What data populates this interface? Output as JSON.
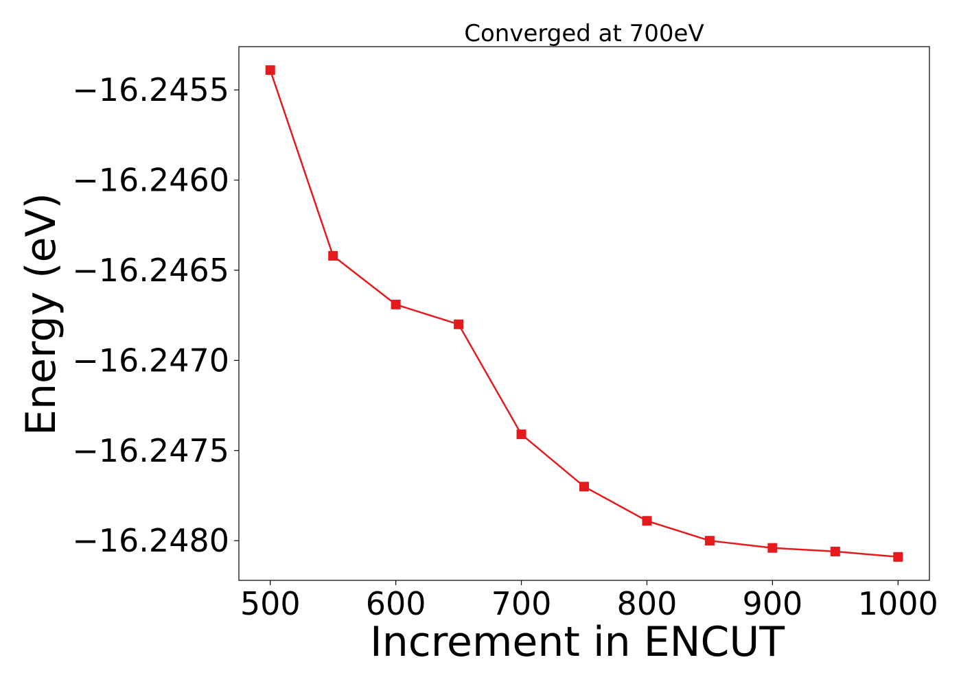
{
  "chart_data": {
    "type": "line",
    "title": "Converged at 700eV",
    "xlabel": "Increment in ENCUT",
    "ylabel": "Energy (eV)",
    "xlim": [
      475,
      1025
    ],
    "ylim": [
      -16.24822,
      -16.24526
    ],
    "xticks": [
      500,
      600,
      700,
      800,
      900,
      1000
    ],
    "yticks": [
      -16.2455,
      -16.246,
      -16.2465,
      -16.247,
      -16.2475,
      -16.248
    ],
    "ytick_labels": [
      "−16.2455",
      "−16.2460",
      "−16.2465",
      "−16.2470",
      "−16.2475",
      "−16.2480"
    ],
    "grid": false,
    "series": [
      {
        "color": "#e41a1c",
        "marker": "square",
        "x": [
          500,
          550,
          600,
          650,
          700,
          750,
          800,
          850,
          900,
          950,
          1000
        ],
        "y": [
          -16.24539,
          -16.24642,
          -16.24669,
          -16.2468,
          -16.24741,
          -16.2477,
          -16.24789,
          -16.248,
          -16.24804,
          -16.24806,
          -16.24809
        ]
      }
    ]
  }
}
